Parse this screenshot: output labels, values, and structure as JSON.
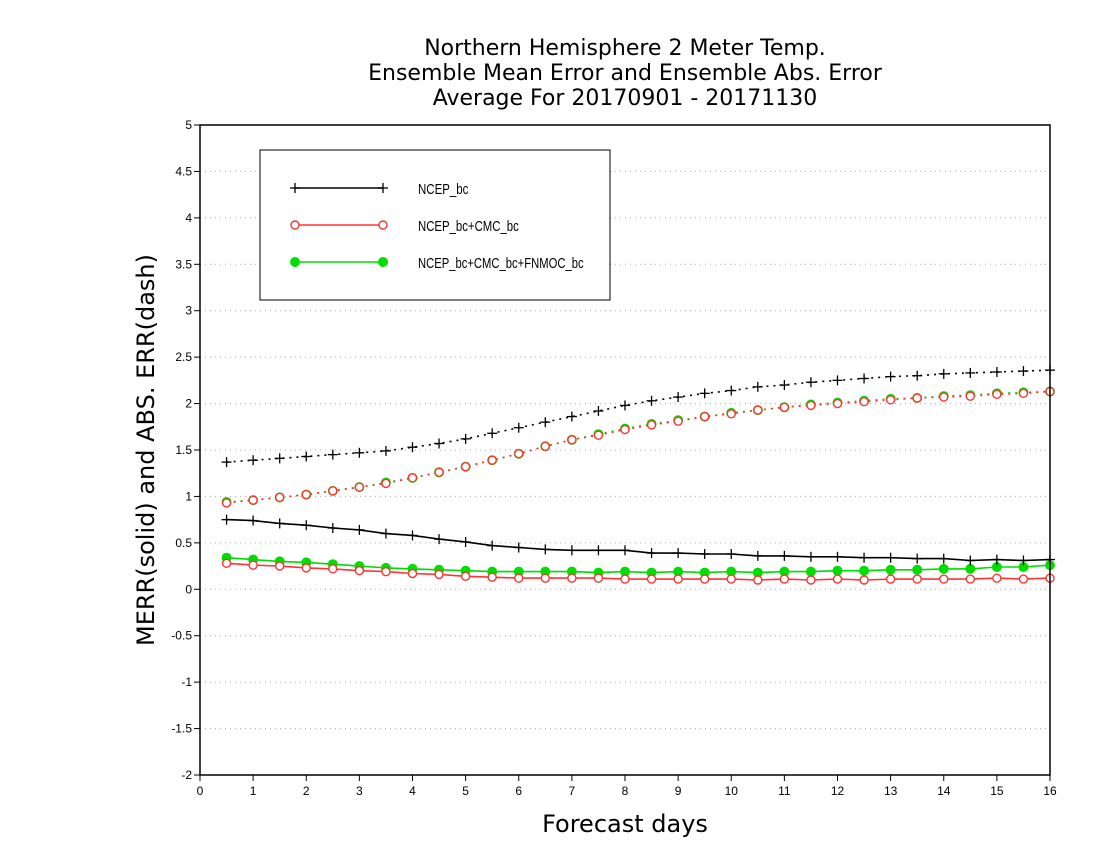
{
  "chart_data": {
    "type": "line",
    "title": [
      "Northern Hemisphere 2 Meter Temp.",
      "Ensemble Mean Error and Ensemble Abs. Error",
      "Average For 20170901 - 20171130"
    ],
    "xlabel": "Forecast days",
    "ylabel": "MERR(solid) and ABS. ERR(dash)",
    "xlim": [
      0,
      16
    ],
    "ylim": [
      -2,
      5
    ],
    "xticks": [
      0,
      1,
      2,
      3,
      4,
      5,
      6,
      7,
      8,
      9,
      10,
      11,
      12,
      13,
      14,
      15,
      16
    ],
    "yticks": [
      -2,
      -1.5,
      -1,
      -0.5,
      0,
      0.5,
      1,
      1.5,
      2,
      2.5,
      3,
      3.5,
      4,
      4.5,
      5
    ],
    "ytick_labels": [
      "-2",
      "-1.5",
      "-1",
      "-0.5",
      "0",
      "0.5",
      "1",
      "1.5",
      "2",
      "2.5",
      "3",
      "3.5",
      "4",
      "4.5",
      "5"
    ],
    "xtick_labels": [
      "0",
      "1",
      "2",
      "3",
      "4",
      "5",
      "6",
      "7",
      "8",
      "9",
      "10",
      "11",
      "12",
      "13",
      "14",
      "15",
      "16"
    ],
    "grid": "horizontal dotted",
    "legend_position": "top-left",
    "x": [
      0.5,
      1.0,
      1.5,
      2.0,
      2.5,
      3.0,
      3.5,
      4.0,
      4.5,
      5.0,
      5.5,
      6.0,
      6.5,
      7.0,
      7.5,
      8.0,
      8.5,
      9.0,
      9.5,
      10.0,
      10.5,
      11.0,
      11.5,
      12.0,
      12.5,
      13.0,
      13.5,
      14.0,
      14.5,
      15.0,
      15.5,
      16.0
    ],
    "series": [
      {
        "name": "NCEP_bc",
        "color": "#000000",
        "marker": "plus",
        "merr": [
          0.75,
          0.74,
          0.71,
          0.69,
          0.66,
          0.64,
          0.6,
          0.58,
          0.54,
          0.51,
          0.47,
          0.45,
          0.43,
          0.42,
          0.42,
          0.42,
          0.39,
          0.39,
          0.38,
          0.38,
          0.36,
          0.36,
          0.35,
          0.35,
          0.34,
          0.34,
          0.33,
          0.33,
          0.31,
          0.32,
          0.31,
          0.32
        ],
        "abs_err": [
          1.37,
          1.39,
          1.41,
          1.43,
          1.45,
          1.47,
          1.49,
          1.53,
          1.57,
          1.62,
          1.68,
          1.74,
          1.8,
          1.86,
          1.92,
          1.98,
          2.03,
          2.07,
          2.11,
          2.14,
          2.18,
          2.2,
          2.23,
          2.25,
          2.27,
          2.29,
          2.3,
          2.32,
          2.33,
          2.34,
          2.35,
          2.36
        ]
      },
      {
        "name": "NCEP_bc+CMC_bc",
        "color": "#ff3333",
        "marker": "open-circle",
        "merr": [
          0.28,
          0.26,
          0.25,
          0.23,
          0.22,
          0.2,
          0.19,
          0.17,
          0.16,
          0.14,
          0.13,
          0.12,
          0.12,
          0.12,
          0.12,
          0.11,
          0.11,
          0.11,
          0.11,
          0.11,
          0.1,
          0.11,
          0.1,
          0.11,
          0.1,
          0.11,
          0.11,
          0.11,
          0.11,
          0.12,
          0.11,
          0.12
        ],
        "abs_err": [
          0.93,
          0.96,
          0.99,
          1.02,
          1.06,
          1.1,
          1.14,
          1.2,
          1.26,
          1.32,
          1.39,
          1.46,
          1.54,
          1.61,
          1.66,
          1.72,
          1.77,
          1.81,
          1.86,
          1.89,
          1.93,
          1.96,
          1.98,
          2.0,
          2.02,
          2.04,
          2.06,
          2.07,
          2.08,
          2.1,
          2.11,
          2.13
        ]
      },
      {
        "name": "NCEP_bc+CMC_bc+FNMOC_bc",
        "color": "#00dd00",
        "marker": "filled-circle",
        "merr": [
          0.34,
          0.32,
          0.3,
          0.29,
          0.27,
          0.25,
          0.23,
          0.22,
          0.21,
          0.2,
          0.19,
          0.19,
          0.19,
          0.19,
          0.18,
          0.19,
          0.18,
          0.19,
          0.18,
          0.19,
          0.18,
          0.19,
          0.19,
          0.2,
          0.2,
          0.21,
          0.21,
          0.22,
          0.22,
          0.24,
          0.24,
          0.26
        ],
        "abs_err": [
          0.94,
          0.96,
          0.99,
          1.02,
          1.06,
          1.1,
          1.15,
          1.2,
          1.26,
          1.32,
          1.39,
          1.46,
          1.54,
          1.61,
          1.67,
          1.73,
          1.78,
          1.82,
          1.86,
          1.9,
          1.93,
          1.96,
          1.99,
          2.01,
          2.03,
          2.05,
          2.06,
          2.08,
          2.09,
          2.11,
          2.12,
          2.13
        ]
      }
    ]
  }
}
